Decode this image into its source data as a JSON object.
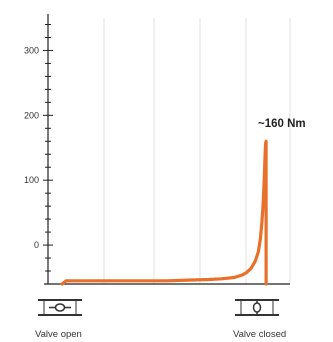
{
  "chart_data": {
    "type": "line",
    "title": "",
    "xlabel": "",
    "ylabel": "",
    "ylim": [
      -60,
      350
    ],
    "y_ticks": [
      "0",
      "100",
      "200",
      "300"
    ],
    "y_tick_values": [
      0,
      100,
      200,
      300
    ],
    "grid": "vertical lines only",
    "line_color": "#e8702a",
    "series": [
      {
        "values_description": "valve torque over the closing stroke",
        "x": [
          0.0,
          0.02,
          0.1,
          0.3,
          0.5,
          0.6,
          0.7,
          0.76,
          0.82,
          0.86,
          0.88,
          0.9,
          0.92,
          0.935,
          0.945,
          0.952,
          0.958,
          0.963,
          0.967,
          0.97,
          0.972,
          0.972
        ],
        "y": [
          -60,
          -55,
          -55,
          -55,
          -55,
          -54,
          -53,
          -52,
          -50,
          -46,
          -42,
          -36,
          -25,
          -10,
          10,
          35,
          65,
          100,
          140,
          158,
          160,
          -60
        ]
      }
    ],
    "annotations": [
      {
        "text": "~160 Nm",
        "at_value": 160
      }
    ],
    "valves": {
      "open_label": "Valve open",
      "closed_label": "Valve closed"
    }
  }
}
